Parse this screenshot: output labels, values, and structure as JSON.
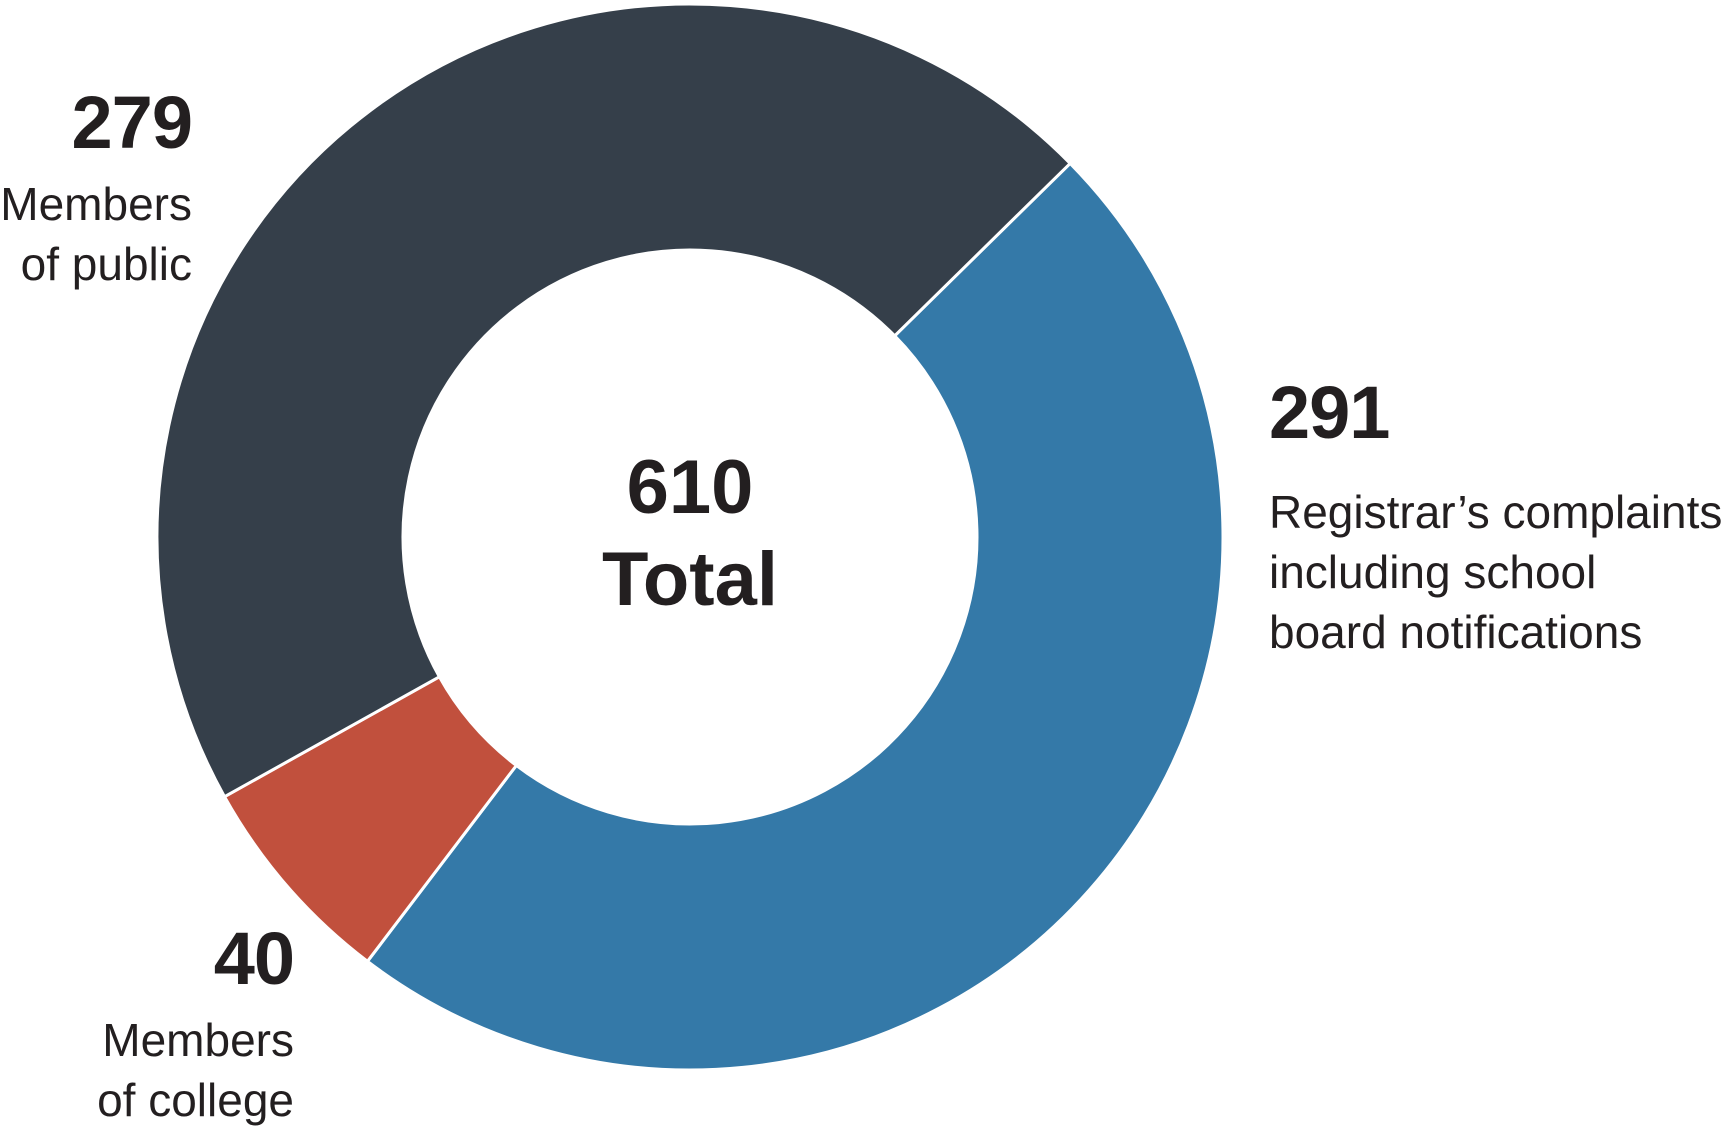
{
  "chart_data": {
    "type": "pie",
    "style": "donut",
    "center_value": "610",
    "center_label": "Total",
    "slices": [
      {
        "value": 291,
        "value_text": "291",
        "label": "Registrar’s complaints\nincluding school\nboard notifications",
        "color": "#3479a8"
      },
      {
        "value": 40,
        "value_text": "40",
        "label": "Members\nof college",
        "color": "#c1503d"
      },
      {
        "value": 279,
        "value_text": "279",
        "label": "Members\nof public",
        "color": "#353f4a"
      }
    ]
  }
}
